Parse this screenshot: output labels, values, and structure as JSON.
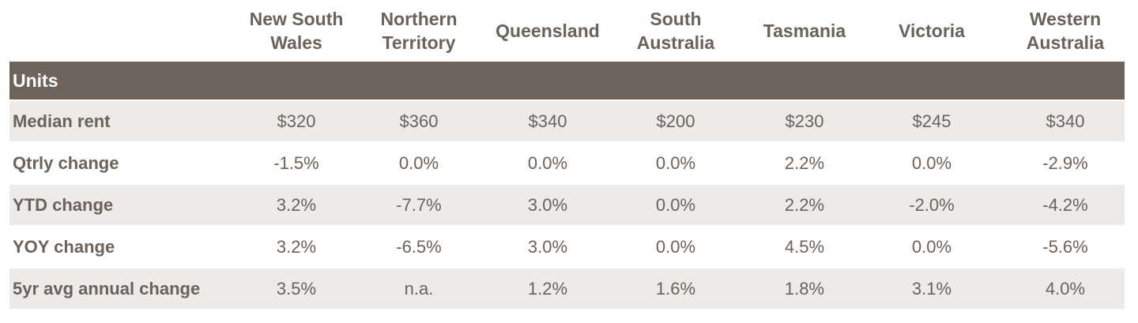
{
  "columns": [
    "New South\nWales",
    "Northern\nTerritory",
    "Queensland",
    "South\nAustralia",
    "Tasmania",
    "Victoria",
    "Western\nAustralia"
  ],
  "section": "Units",
  "rows": [
    {
      "label": "Median rent",
      "values": [
        "$320",
        "$360",
        "$340",
        "$200",
        "$230",
        "$245",
        "$340"
      ]
    },
    {
      "label": "Qtrly change",
      "values": [
        "-1.5%",
        "0.0%",
        "0.0%",
        "0.0%",
        "2.2%",
        "0.0%",
        "-2.9%"
      ]
    },
    {
      "label": "YTD change",
      "values": [
        "3.2%",
        "-7.7%",
        "3.0%",
        "0.0%",
        "2.2%",
        "-2.0%",
        "-4.2%"
      ]
    },
    {
      "label": "YOY change",
      "values": [
        "3.2%",
        "-6.5%",
        "3.0%",
        "0.0%",
        "4.5%",
        "0.0%",
        "-5.6%"
      ]
    },
    {
      "label": "5yr avg annual change",
      "values": [
        "3.5%",
        "n.a.",
        "1.2%",
        "1.6%",
        "1.8%",
        "3.1%",
        "4.0%"
      ]
    }
  ],
  "colors": {
    "header_bar": "#6f645b",
    "row_shade": "#ecebea",
    "text": "#6b625a"
  }
}
